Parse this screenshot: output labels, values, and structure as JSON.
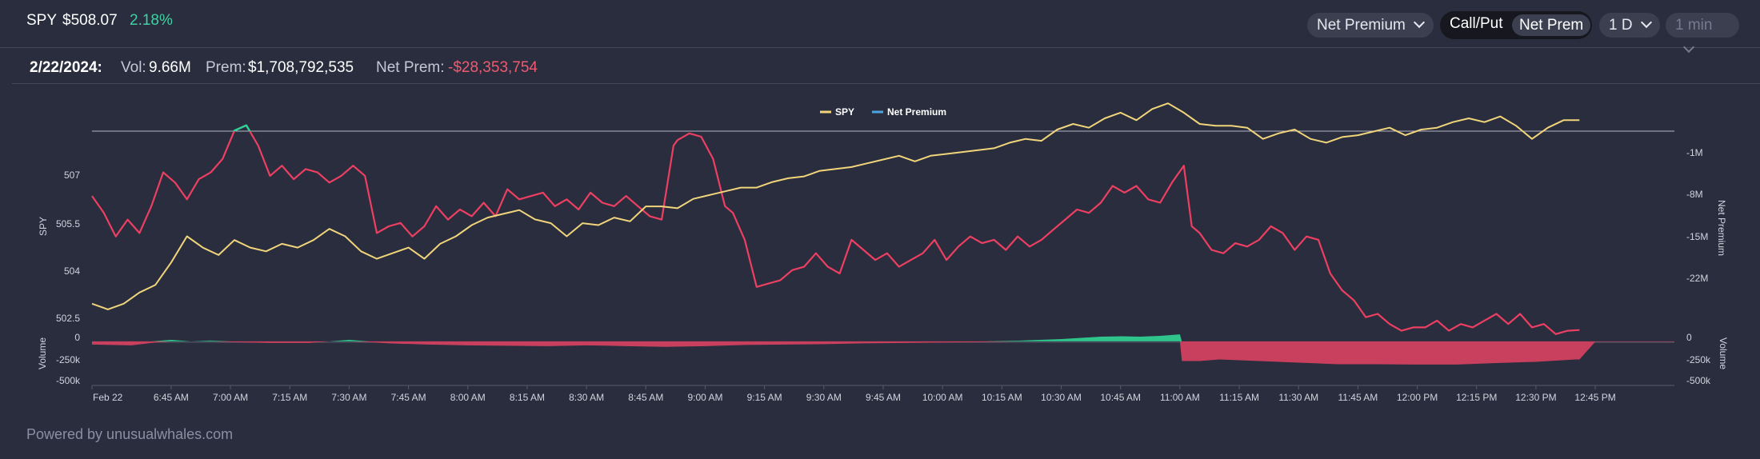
{
  "header": {
    "ticker": "SPY",
    "price": "$508.07",
    "change": "2.18%",
    "metric_select": "Net Premium",
    "toggle": {
      "option_a": "Call/Put",
      "option_b": "Net Prem",
      "selected": "Net Prem"
    },
    "range_select": "1 D",
    "interval_select": "1 min"
  },
  "summary": {
    "date": "2/22/2024:",
    "vol_label": "Vol:",
    "vol_value": "9.66M",
    "prem_label": "Prem:",
    "prem_value": "$1,708,792,535",
    "netprem_label": "Net Prem:",
    "netprem_value": "-$28,353,754"
  },
  "footer": {
    "text": "Powered by unusualwhales.com"
  },
  "colors": {
    "background": "#2a2d3e",
    "spy_line": "#f0d57a",
    "net_premium_line": "#ec3f62",
    "net_premium_positive": "#2fd296",
    "volume_negative": "#c9405e",
    "volume_positive": "#2fc48b",
    "legend_net_premium": "#4aa6e0",
    "axis_text": "#d0d3dc",
    "grid_line": "#b5b8c4"
  },
  "chart_data": {
    "type": "line",
    "legend": [
      {
        "name": "SPY"
      },
      {
        "name": "Net Premium"
      }
    ],
    "legend_position": "top-center",
    "x_ticks": [
      "Feb 22",
      "6:45 AM",
      "7:00 AM",
      "7:15 AM",
      "7:30 AM",
      "7:45 AM",
      "8:00 AM",
      "8:15 AM",
      "8:30 AM",
      "8:45 AM",
      "9:00 AM",
      "9:15 AM",
      "9:30 AM",
      "9:45 AM",
      "10:00 AM",
      "10:15 AM",
      "10:30 AM",
      "10:45 AM",
      "11:00 AM",
      "11:15 AM",
      "11:30 AM",
      "11:45 AM",
      "12:00 PM",
      "12:15 PM",
      "12:30 PM",
      "12:45 PM"
    ],
    "x_minutes_range": [
      385,
      785
    ],
    "x_tick_minutes": [
      385,
      405,
      420,
      435,
      450,
      465,
      480,
      495,
      510,
      525,
      540,
      555,
      570,
      585,
      600,
      615,
      630,
      645,
      660,
      675,
      690,
      705,
      720,
      735,
      750,
      765
    ],
    "spy_axis": {
      "label": "SPY",
      "ticks": [
        "502.5",
        "504",
        "505.5",
        "507"
      ],
      "range": [
        502.3,
        508.0
      ]
    },
    "net_premium_axis": {
      "label": "Net Premium",
      "ticks": [
        "-1M",
        "-8M",
        "-15M",
        "-22M"
      ],
      "range_millions": [
        -29.5,
        2.2
      ]
    },
    "volume_axis_left": {
      "label": "Volume",
      "ticks": [
        "0",
        "-250k",
        "-500k"
      ]
    },
    "volume_axis_right": {
      "label": "Volume",
      "ticks": [
        "0",
        "-250k",
        "-500k"
      ]
    },
    "volume_range_k": [
      -560,
      50
    ],
    "series": [
      {
        "name": "SPY",
        "x_minutes": [
          385,
          389,
          393,
          397,
          401,
          405,
          409,
          413,
          417,
          421,
          425,
          429,
          433,
          437,
          441,
          445,
          449,
          453,
          457,
          461,
          465,
          469,
          473,
          477,
          481,
          485,
          489,
          493,
          497,
          501,
          505,
          509,
          513,
          517,
          521,
          525,
          529,
          533,
          537,
          541,
          545,
          549,
          553,
          557,
          561,
          565,
          569,
          573,
          577,
          581,
          585,
          589,
          593,
          597,
          601,
          605,
          609,
          613,
          617,
          621,
          625,
          629,
          633,
          637,
          641,
          645,
          649,
          653,
          657,
          661,
          665,
          669,
          673,
          677,
          681,
          685,
          689,
          693,
          697,
          701,
          705,
          709,
          713,
          717,
          721,
          725,
          729,
          733,
          737,
          741,
          745,
          749,
          753,
          757,
          761
        ],
        "values": [
          503.2,
          503.05,
          503.2,
          503.5,
          503.7,
          504.3,
          505.0,
          504.7,
          504.5,
          504.9,
          504.7,
          504.6,
          504.8,
          504.7,
          504.9,
          505.2,
          505.0,
          504.6,
          504.4,
          504.55,
          504.7,
          504.4,
          504.8,
          505.0,
          505.3,
          505.5,
          505.6,
          505.7,
          505.45,
          505.35,
          505.0,
          505.35,
          505.3,
          505.5,
          505.4,
          505.8,
          505.8,
          505.75,
          506.0,
          506.1,
          506.2,
          506.3,
          506.3,
          506.45,
          506.55,
          506.6,
          506.75,
          506.8,
          506.85,
          506.95,
          507.05,
          507.15,
          507.0,
          507.15,
          507.2,
          507.25,
          507.3,
          507.35,
          507.5,
          507.6,
          507.55,
          507.85,
          508.0,
          507.9,
          508.15,
          508.3,
          508.1,
          508.4,
          508.55,
          508.3,
          508.0,
          507.95,
          507.95,
          507.9,
          507.6,
          507.75,
          507.85,
          507.6,
          507.5,
          507.65,
          507.7,
          507.8,
          507.9,
          507.7,
          507.85,
          507.9,
          508.05,
          508.15,
          508.05,
          508.2,
          507.95,
          507.6,
          507.9,
          508.1,
          508.1
        ]
      },
      {
        "name": "Net Premium",
        "unit": "millions",
        "x_minutes": [
          385,
          388,
          391,
          394,
          397,
          400,
          403,
          406,
          409,
          412,
          415,
          418,
          421,
          424,
          427,
          430,
          433,
          436,
          439,
          442,
          445,
          448,
          451,
          454,
          457,
          460,
          463,
          466,
          469,
          472,
          475,
          478,
          481,
          484,
          487,
          490,
          493,
          496,
          499,
          502,
          505,
          508,
          511,
          514,
          517,
          520,
          523,
          526,
          529,
          532,
          533,
          536,
          539,
          542,
          545,
          547,
          550,
          553,
          556,
          559,
          562,
          565,
          568,
          571,
          574,
          577,
          580,
          583,
          586,
          589,
          592,
          595,
          598,
          601,
          604,
          607,
          610,
          613,
          616,
          619,
          622,
          625,
          628,
          631,
          634,
          637,
          640,
          643,
          646,
          649,
          652,
          655,
          658,
          661,
          663,
          665,
          668,
          671,
          674,
          677,
          680,
          683,
          686,
          689,
          692,
          695,
          698,
          701,
          704,
          707,
          710,
          713,
          716,
          719,
          722,
          725,
          728,
          731,
          734,
          737,
          740,
          743,
          746,
          749,
          752,
          755,
          758,
          761
        ],
        "values": [
          -8.5,
          -11.0,
          -14.5,
          -12.0,
          -14.0,
          -10.0,
          -5.0,
          -6.5,
          -9.0,
          -6.0,
          -5.0,
          -3.0,
          1.2,
          2.0,
          -1.0,
          -5.5,
          -4.0,
          -6.0,
          -4.5,
          -5.0,
          -6.5,
          -5.5,
          -4.0,
          -5.5,
          -14.0,
          -13.0,
          -12.5,
          -14.5,
          -13.0,
          -10.0,
          -12.0,
          -10.5,
          -11.5,
          -9.5,
          -11.5,
          -7.5,
          -9.0,
          -8.5,
          -8.0,
          -10.0,
          -9.0,
          -10.5,
          -8.0,
          -9.5,
          -10.0,
          -8.5,
          -10.0,
          -11.5,
          -12.0,
          -1.0,
          -0.2,
          0.8,
          0.3,
          -3.0,
          -10.0,
          -11.0,
          -15.0,
          -22.0,
          -21.5,
          -21.0,
          -19.5,
          -19.0,
          -17.0,
          -19.0,
          -20.0,
          -15.0,
          -16.5,
          -18.0,
          -17.0,
          -19.0,
          -18.0,
          -17.0,
          -15.0,
          -18.0,
          -16.0,
          -14.5,
          -15.5,
          -15.0,
          -16.5,
          -14.5,
          -16.0,
          -15.0,
          -13.5,
          -12.0,
          -10.5,
          -11.0,
          -9.5,
          -7.0,
          -8.0,
          -7.0,
          -9.0,
          -9.5,
          -6.5,
          -4.0,
          -13.0,
          -14.0,
          -16.5,
          -17.0,
          -15.5,
          -16.0,
          -15.0,
          -13.0,
          -14.0,
          -16.5,
          -14.5,
          -15.0,
          -20.0,
          -22.5,
          -24.0,
          -26.5,
          -26.0,
          -27.5,
          -28.5,
          -28.0,
          -28.0,
          -27.0,
          -28.5,
          -27.5,
          -28.0,
          -27.0,
          -26.0,
          -27.5,
          -26.0,
          -28.0,
          -27.5,
          -29.0,
          -28.5,
          -28.4
        ]
      },
      {
        "name": "Volume",
        "unit": "thousands",
        "x_minutes": [
          385,
          395,
          400,
          405,
          410,
          415,
          420,
          430,
          440,
          445,
          450,
          455,
          460,
          470,
          480,
          490,
          500,
          510,
          520,
          530,
          540,
          550,
          560,
          570,
          580,
          590,
          600,
          610,
          620,
          630,
          635,
          640,
          645,
          650,
          655,
          660,
          660.5,
          665,
          670,
          675,
          680,
          690,
          700,
          710,
          720,
          730,
          740,
          750,
          760,
          761,
          765,
          785
        ],
        "values": [
          -40,
          -50,
          -20,
          20,
          0,
          10,
          -10,
          -20,
          -20,
          0,
          20,
          -10,
          -25,
          -40,
          -50,
          -55,
          -60,
          -50,
          -60,
          -70,
          -60,
          -45,
          -40,
          -35,
          -25,
          -20,
          -15,
          -10,
          10,
          30,
          45,
          60,
          65,
          60,
          70,
          90,
          -250,
          -250,
          -230,
          -240,
          -250,
          -270,
          -290,
          -290,
          -295,
          -295,
          -275,
          -260,
          -230,
          -230,
          -5,
          -5
        ]
      }
    ]
  }
}
